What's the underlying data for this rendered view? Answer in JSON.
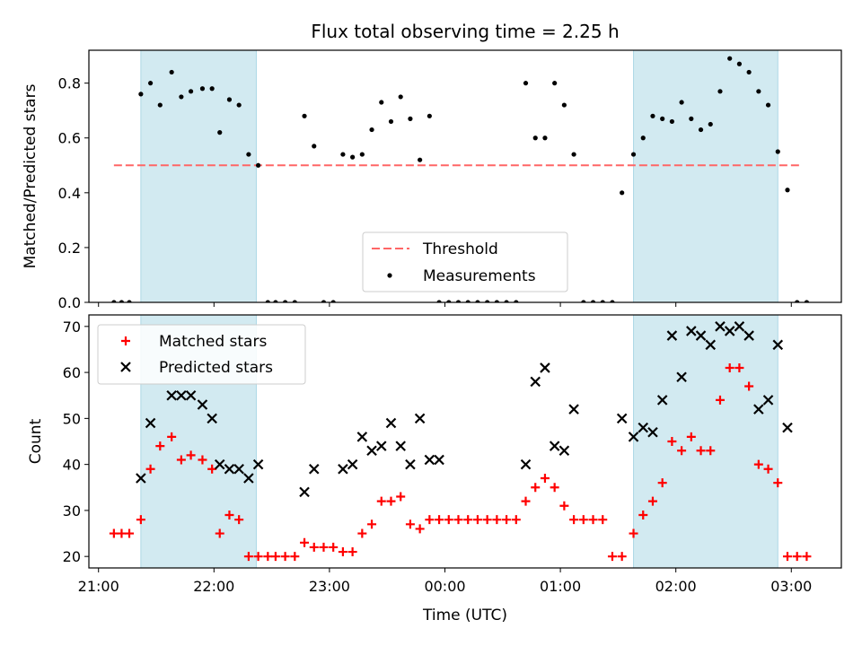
{
  "figure": {
    "title": "Flux total observing time = 2.25 h",
    "xlabel": "Time (UTC)"
  },
  "colors": {
    "shade": "#add8e6",
    "threshold": "#ff6666",
    "measurement": "#000000",
    "matched": "#ff0000",
    "predicted": "#000000"
  },
  "chart_data": [
    {
      "type": "scatter",
      "ylabel": "Matched/Predicted stars",
      "xlim": [
        "20:55",
        "03:26"
      ],
      "ylim": [
        0,
        0.92
      ],
      "yticks": [
        "0.0",
        "0.2",
        "0.4",
        "0.6",
        "0.8"
      ],
      "ytick_values": [
        0,
        0.2,
        0.4,
        0.6,
        0.8
      ],
      "x_time_unit": "HH:MM UTC (after 24:00 = next day)",
      "shaded_intervals": [
        [
          "21:22",
          "22:22"
        ],
        [
          "01:38",
          "02:53"
        ]
      ],
      "threshold": {
        "name": "Threshold",
        "value": 0.5,
        "x_range": [
          "21:08",
          "03:04"
        ]
      },
      "legend": {
        "placement": "lower-center",
        "entries": [
          "Threshold",
          "Measurements"
        ]
      },
      "series": [
        {
          "name": "Measurements",
          "x": [
            "21:08",
            "21:12",
            "21:16",
            "21:22",
            "21:27",
            "21:32",
            "21:38",
            "21:43",
            "21:48",
            "21:54",
            "21:59",
            "22:03",
            "22:08",
            "22:13",
            "22:18",
            "22:23",
            "22:28",
            "22:32",
            "22:37",
            "22:42",
            "22:47",
            "22:52",
            "22:57",
            "23:02",
            "23:07",
            "23:12",
            "23:17",
            "23:22",
            "23:27",
            "23:32",
            "23:37",
            "23:42",
            "23:47",
            "23:52",
            "23:57",
            "00:02",
            "00:07",
            "00:12",
            "00:17",
            "00:22",
            "00:27",
            "00:32",
            "00:37",
            "00:42",
            "00:47",
            "00:52",
            "00:57",
            "01:02",
            "01:07",
            "01:12",
            "01:17",
            "01:22",
            "01:27",
            "01:32",
            "01:38",
            "01:43",
            "01:48",
            "01:53",
            "01:58",
            "02:03",
            "02:08",
            "02:13",
            "02:18",
            "02:23",
            "02:28",
            "02:33",
            "02:38",
            "02:43",
            "02:48",
            "02:53",
            "02:58",
            "03:03",
            "03:08"
          ],
          "y": [
            0,
            0,
            0,
            0.76,
            0.8,
            0.72,
            0.84,
            0.75,
            0.77,
            0.78,
            0.78,
            0.62,
            0.74,
            0.72,
            0.54,
            0.5,
            0,
            0,
            0,
            0,
            0.68,
            0.57,
            0,
            0,
            0.54,
            0.53,
            0.54,
            0.63,
            0.73,
            0.66,
            0.75,
            0.67,
            0.52,
            0.68,
            0,
            0,
            0,
            0,
            0,
            0,
            0,
            0,
            0,
            0.8,
            0.6,
            0.6,
            0.8,
            0.72,
            0.54,
            0,
            0,
            0,
            0,
            0.4,
            0.54,
            0.6,
            0.68,
            0.67,
            0.66,
            0.73,
            0.67,
            0.63,
            0.65,
            0.77,
            0.89,
            0.87,
            0.84,
            0.77,
            0.72,
            0.55,
            0.41,
            0,
            0
          ]
        }
      ]
    },
    {
      "type": "scatter",
      "ylabel": "Count",
      "xlim": [
        "20:55",
        "03:26"
      ],
      "ylim": [
        17.5,
        72.5
      ],
      "yticks": [
        "20",
        "30",
        "40",
        "50",
        "60",
        "70"
      ],
      "ytick_values": [
        20,
        30,
        40,
        50,
        60,
        70
      ],
      "xticks": [
        "21:00",
        "22:00",
        "23:00",
        "00:00",
        "01:00",
        "02:00",
        "03:00"
      ],
      "xtick_values": [
        "21:00",
        "22:00",
        "23:00",
        "00:00",
        "01:00",
        "02:00",
        "03:00"
      ],
      "x_time_unit": "HH:MM UTC (after 24:00 = next day)",
      "shaded_intervals": [
        [
          "21:22",
          "22:22"
        ],
        [
          "01:38",
          "02:53"
        ]
      ],
      "legend": {
        "placement": "upper-left",
        "entries": [
          "Matched stars",
          "Predicted stars"
        ]
      },
      "series": [
        {
          "name": "Matched stars",
          "marker": "plus",
          "x": [
            "21:08",
            "21:12",
            "21:16",
            "21:22",
            "21:27",
            "21:32",
            "21:38",
            "21:43",
            "21:48",
            "21:54",
            "21:59",
            "22:03",
            "22:08",
            "22:13",
            "22:18",
            "22:23",
            "22:28",
            "22:32",
            "22:37",
            "22:42",
            "22:47",
            "22:52",
            "22:57",
            "23:02",
            "23:07",
            "23:12",
            "23:17",
            "23:22",
            "23:27",
            "23:32",
            "23:37",
            "23:42",
            "23:47",
            "23:52",
            "23:57",
            "00:02",
            "00:07",
            "00:12",
            "00:17",
            "00:22",
            "00:27",
            "00:32",
            "00:37",
            "00:42",
            "00:47",
            "00:52",
            "00:57",
            "01:02",
            "01:07",
            "01:12",
            "01:17",
            "01:22",
            "01:27",
            "01:32",
            "01:38",
            "01:43",
            "01:48",
            "01:53",
            "01:58",
            "02:03",
            "02:08",
            "02:13",
            "02:18",
            "02:23",
            "02:28",
            "02:33",
            "02:38",
            "02:43",
            "02:48",
            "02:53",
            "02:58",
            "03:03",
            "03:08"
          ],
          "y": [
            25,
            25,
            25,
            28,
            39,
            44,
            46,
            41,
            42,
            41,
            39,
            25,
            29,
            28,
            20,
            20,
            20,
            20,
            20,
            20,
            23,
            22,
            22,
            22,
            21,
            21,
            25,
            27,
            32,
            32,
            33,
            27,
            26,
            28,
            28,
            28,
            28,
            28,
            28,
            28,
            28,
            28,
            28,
            32,
            35,
            37,
            35,
            31,
            28,
            28,
            28,
            28,
            20,
            20,
            25,
            29,
            32,
            36,
            45,
            43,
            46,
            43,
            43,
            54,
            61,
            61,
            57,
            40,
            39,
            36,
            20,
            20,
            20
          ]
        },
        {
          "name": "Predicted stars",
          "marker": "x",
          "x": [
            "21:22",
            "21:27",
            "21:38",
            "21:43",
            "21:48",
            "21:54",
            "21:59",
            "22:03",
            "22:08",
            "22:13",
            "22:18",
            "22:23",
            "22:47",
            "22:52",
            "23:07",
            "23:12",
            "23:17",
            "23:22",
            "23:27",
            "23:32",
            "23:37",
            "23:42",
            "23:47",
            "23:52",
            "23:57",
            "00:42",
            "00:47",
            "00:52",
            "00:57",
            "01:02",
            "01:07",
            "01:32",
            "01:38",
            "01:43",
            "01:48",
            "01:53",
            "01:58",
            "02:03",
            "02:08",
            "02:13",
            "02:18",
            "02:23",
            "02:28",
            "02:33",
            "02:38",
            "02:43",
            "02:48",
            "02:53",
            "02:58"
          ],
          "y": [
            37,
            49,
            55,
            55,
            55,
            53,
            50,
            40,
            39,
            39,
            37,
            40,
            34,
            39,
            39,
            40,
            46,
            43,
            44,
            49,
            44,
            40,
            50,
            41,
            41,
            40,
            58,
            61,
            44,
            43,
            52,
            50,
            46,
            48,
            47,
            54,
            68,
            59,
            69,
            68,
            66,
            70,
            69,
            70,
            68,
            52,
            54,
            66,
            48
          ]
        }
      ]
    }
  ]
}
